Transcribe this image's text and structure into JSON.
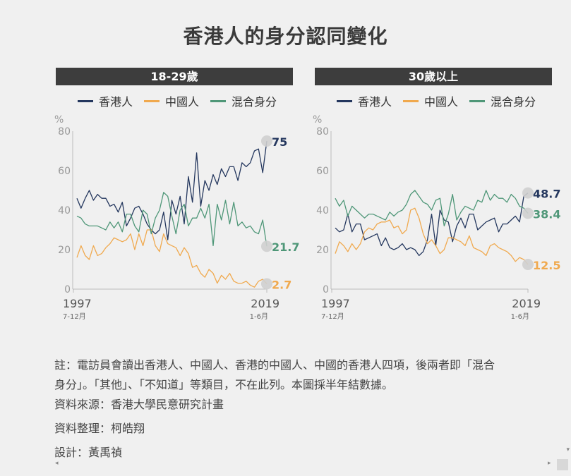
{
  "title": "香港人的身分認同變化",
  "legend": [
    {
      "label": "香港人",
      "color": "#24375e"
    },
    {
      "label": "中國人",
      "color": "#f0a94e"
    },
    {
      "label": "混合身分",
      "color": "#4f9778"
    }
  ],
  "chart_data": [
    {
      "type": "line",
      "title": "18-29歲",
      "ylabel": "%",
      "ylim": [
        0,
        80
      ],
      "yticks": [
        "0",
        "20",
        "40",
        "60",
        "80"
      ],
      "x_start": {
        "label": "1997",
        "sub": "7-12月"
      },
      "x_end": {
        "label": "2019",
        "sub": "1-6月"
      },
      "series": [
        {
          "name": "香港人",
          "color": "#24375e",
          "end_label": "75",
          "values": [
            46,
            41,
            46,
            50,
            45,
            48,
            46,
            46,
            42,
            43,
            39,
            44,
            32,
            36,
            41,
            42,
            38,
            33,
            30,
            28,
            30,
            39,
            25,
            45,
            38,
            47,
            33,
            57,
            44,
            69,
            42,
            55,
            50,
            58,
            53,
            61,
            57,
            62,
            62,
            55,
            64,
            62,
            64,
            70,
            71,
            59,
            75
          ]
        },
        {
          "name": "中國人",
          "color": "#f0a94e",
          "end_label": "2.7",
          "values": [
            16,
            22,
            17,
            15,
            22,
            17,
            18,
            21,
            23,
            26,
            25,
            24,
            25,
            28,
            20,
            28,
            22,
            30,
            30,
            22,
            19,
            28,
            23,
            22,
            21,
            17,
            21,
            18,
            11,
            12,
            8,
            6,
            10,
            8,
            3,
            7,
            5,
            8,
            4,
            3,
            3,
            4,
            2,
            1,
            4,
            5,
            2.7
          ]
        },
        {
          "name": "混合身分",
          "color": "#4f9778",
          "end_label": "21.7",
          "values": [
            37,
            36,
            33,
            32,
            32,
            32,
            31,
            30,
            34,
            31,
            34,
            29,
            38,
            38,
            32,
            29,
            40,
            38,
            28,
            36,
            40,
            49,
            47,
            37,
            28,
            40,
            43,
            32,
            36,
            36,
            41,
            36,
            43,
            22,
            43,
            35,
            45,
            33,
            44,
            32,
            34,
            31,
            32,
            29,
            28,
            35,
            21.7
          ]
        }
      ]
    },
    {
      "type": "line",
      "title": "30歲以上",
      "ylabel": "%",
      "ylim": [
        0,
        80
      ],
      "yticks": [
        "0",
        "20",
        "40",
        "60",
        "80"
      ],
      "x_start": {
        "label": "1997",
        "sub": "7-12月"
      },
      "x_end": {
        "label": "2019",
        "sub": "1-6月"
      },
      "series": [
        {
          "name": "香港人",
          "color": "#24375e",
          "end_label": "48.7",
          "values": [
            31,
            29,
            30,
            38,
            29,
            33,
            33,
            25,
            26,
            27,
            28,
            22,
            26,
            21,
            20,
            21,
            23,
            20,
            21,
            20,
            17,
            19,
            25,
            38,
            22,
            40,
            35,
            34,
            24,
            32,
            36,
            31,
            38,
            38,
            30,
            32,
            34,
            35,
            36,
            29,
            33,
            33,
            35,
            37,
            34,
            47,
            48.7
          ]
        },
        {
          "name": "中國人",
          "color": "#f0a94e",
          "end_label": "12.5",
          "values": [
            18,
            24,
            22,
            19,
            23,
            20,
            23,
            29,
            31,
            30,
            33,
            34,
            34,
            35,
            31,
            32,
            28,
            30,
            40,
            41,
            36,
            28,
            23,
            25,
            22,
            18,
            20,
            26,
            26,
            25,
            24,
            22,
            27,
            21,
            20,
            19,
            17,
            22,
            23,
            21,
            20,
            19,
            17,
            14,
            16,
            15,
            12.5
          ]
        },
        {
          "name": "混合身分",
          "color": "#4f9778",
          "end_label": "38.4",
          "values": [
            46,
            42,
            45,
            37,
            42,
            40,
            38,
            36,
            38,
            38,
            37,
            36,
            35,
            39,
            37,
            39,
            40,
            43,
            48,
            50,
            47,
            44,
            43,
            40,
            45,
            46,
            32,
            38,
            48,
            35,
            39,
            42,
            41,
            40,
            45,
            44,
            50,
            45,
            48,
            46,
            46,
            44,
            48,
            46,
            42,
            41,
            38.4
          ]
        }
      ]
    }
  ],
  "notes": {
    "line1": "註：電訪員會讀出香港人、中國人、香港的中國人、中國的香港人四項，後兩者即「混合",
    "line2": "身分」。「其他」、「不知道」等類目，不在此列。本圖採半年結數據。",
    "source": "資料來源：香港大學民意研究計畫",
    "compiler": "資料整理：柯皓翔",
    "designer": "設計：黃禹禎"
  }
}
